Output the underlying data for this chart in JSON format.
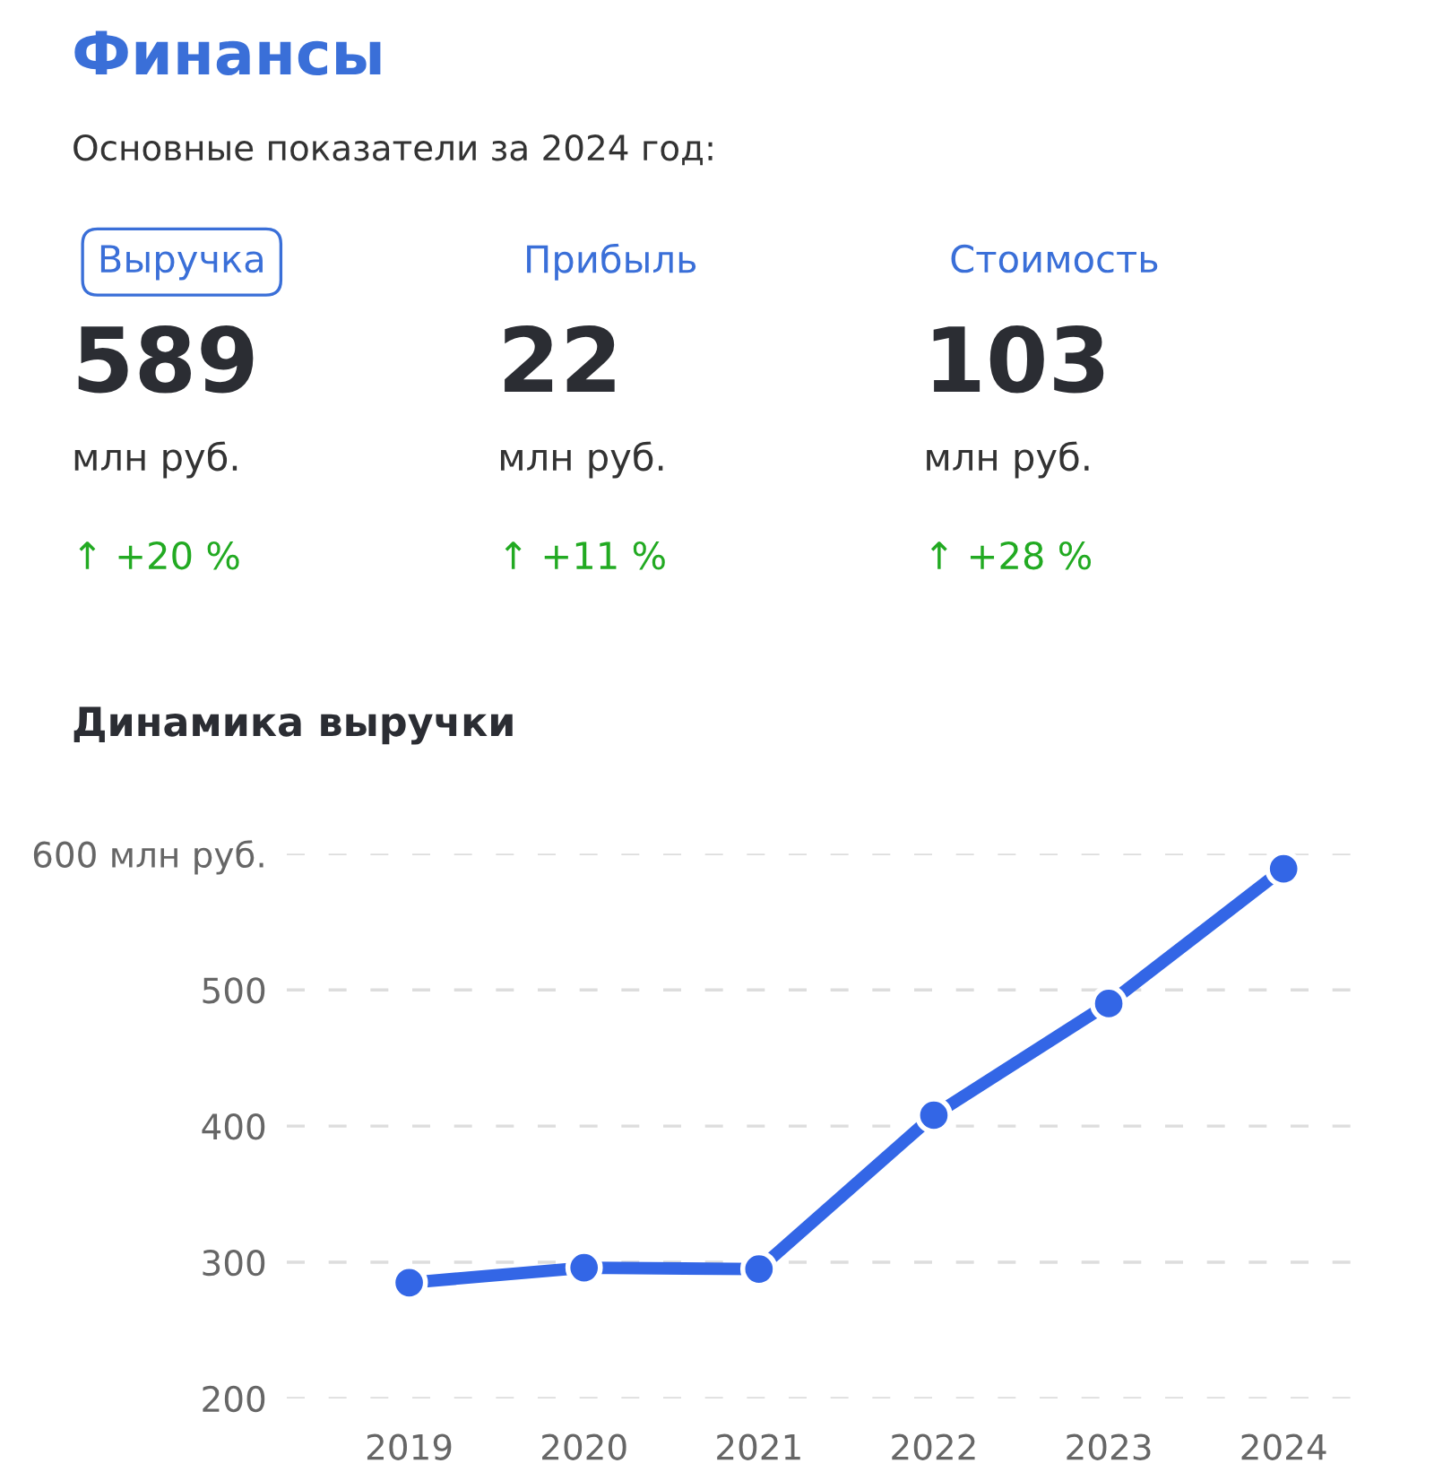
{
  "chart_data": [
    {
      "type": "other",
      "title": "Финансы",
      "subtitle": "Основные показатели за 2024 год:",
      "annotations": [
        "Выручка",
        "589",
        "млн руб.",
        "↑ +20 %",
        "Прибыль",
        "22",
        "млн руб.",
        "↑ +11 %",
        "Стоимость",
        "103",
        "млн руб.",
        "↑ +28 %"
      ]
    },
    {
      "type": "line",
      "title": "Динамика выручки",
      "categories": [
        "2019",
        "2020",
        "2021",
        "2022",
        "2023",
        "2024"
      ],
      "series": [
        {
          "color": "#3366e6",
          "values": [
            285,
            296,
            295,
            408,
            490,
            589
          ]
        }
      ],
      "ylim": [
        200,
        600
      ],
      "yticks": [
        200,
        300,
        400,
        {
          "value": 600,
          "label": "600 млн руб."
        },
        500
      ],
      "grid": "y",
      "marker": "circle",
      "line_style": "solid"
    }
  ]
}
